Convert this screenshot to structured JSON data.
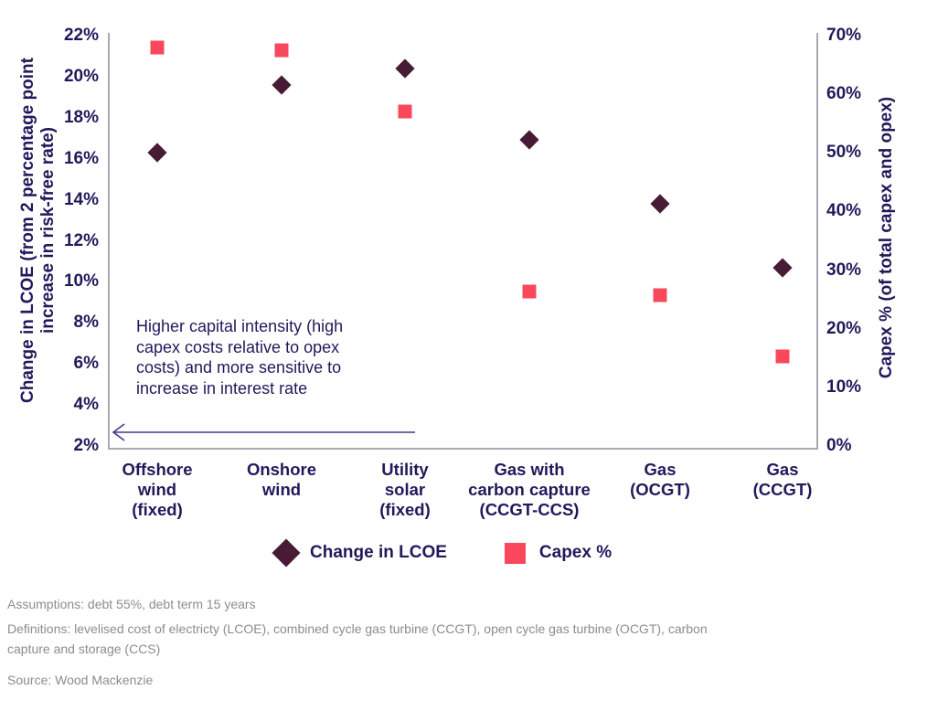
{
  "chart_data": {
    "type": "scatter",
    "categories": [
      "Offshore wind (fixed)",
      "Onshore wind",
      "Utility solar (fixed)",
      "Gas with carbon capture (CCGT-CCS)",
      "Gas (OCGT)",
      "Gas (CCGT)"
    ],
    "category_label_lines": [
      [
        "Offshore",
        "wind",
        "(fixed)"
      ],
      [
        "Onshore",
        "wind"
      ],
      [
        "Utility",
        "solar",
        "(fixed)"
      ],
      [
        "Gas with",
        "carbon capture",
        "(CCGT-CCS)"
      ],
      [
        "Gas",
        "(OCGT)"
      ],
      [
        "Gas",
        "(CCGT)"
      ]
    ],
    "series": [
      {
        "name": "Change in LCOE",
        "marker": "diamond",
        "color": "#471b36",
        "axis": "left",
        "values": [
          16.3,
          19.6,
          20.4,
          16.9,
          13.8,
          10.7
        ]
      },
      {
        "name": "Capex %",
        "marker": "square",
        "color": "#f9485c",
        "axis": "right",
        "values": [
          68,
          67.5,
          57,
          26.3,
          25.8,
          15.3
        ]
      }
    ],
    "left_axis": {
      "title": "Change in LCOE (from 2 percentage point increase in risk-free rate)",
      "title_lines": [
        "Change in LCOE (from 2 percentage point",
        "increase in risk-free rate)"
      ],
      "min": 2,
      "max": 22,
      "tick_step": 2,
      "tick_labels": [
        "2%",
        "4%",
        "6%",
        "8%",
        "10%",
        "12%",
        "14%",
        "16%",
        "18%",
        "20%",
        "22%"
      ]
    },
    "right_axis": {
      "title": "Capex % (of total capex and opex)",
      "min": 0,
      "max": 70,
      "tick_step": 10,
      "tick_labels": [
        "0%",
        "10%",
        "20%",
        "30%",
        "40%",
        "50%",
        "60%",
        "70%"
      ]
    },
    "legend_position": "bottom",
    "grid": false,
    "annotation": {
      "lines": [
        "Higher capital intensity (high",
        "capex costs relative to opex",
        "costs) and more sensitive to",
        "increase in interest rate"
      ],
      "arrow_direction": "left"
    }
  },
  "colors": {
    "navy_text": "#201a5b",
    "axis_line": "#a9a9b6",
    "arrow": "#3d3d8a",
    "diamond": "#471b36",
    "square": "#f9485c",
    "footer_text": "#8c8c8c"
  },
  "footer": {
    "assumptions": "Assumptions: debt 55%, debt term 15 years",
    "definitions": "Definitions: levelised cost of electricty (LCOE), combined cycle gas turbine (CCGT), open cycle gas turbine (OCGT), carbon capture and storage (CCS)",
    "source": "Source: Wood Mackenzie"
  }
}
